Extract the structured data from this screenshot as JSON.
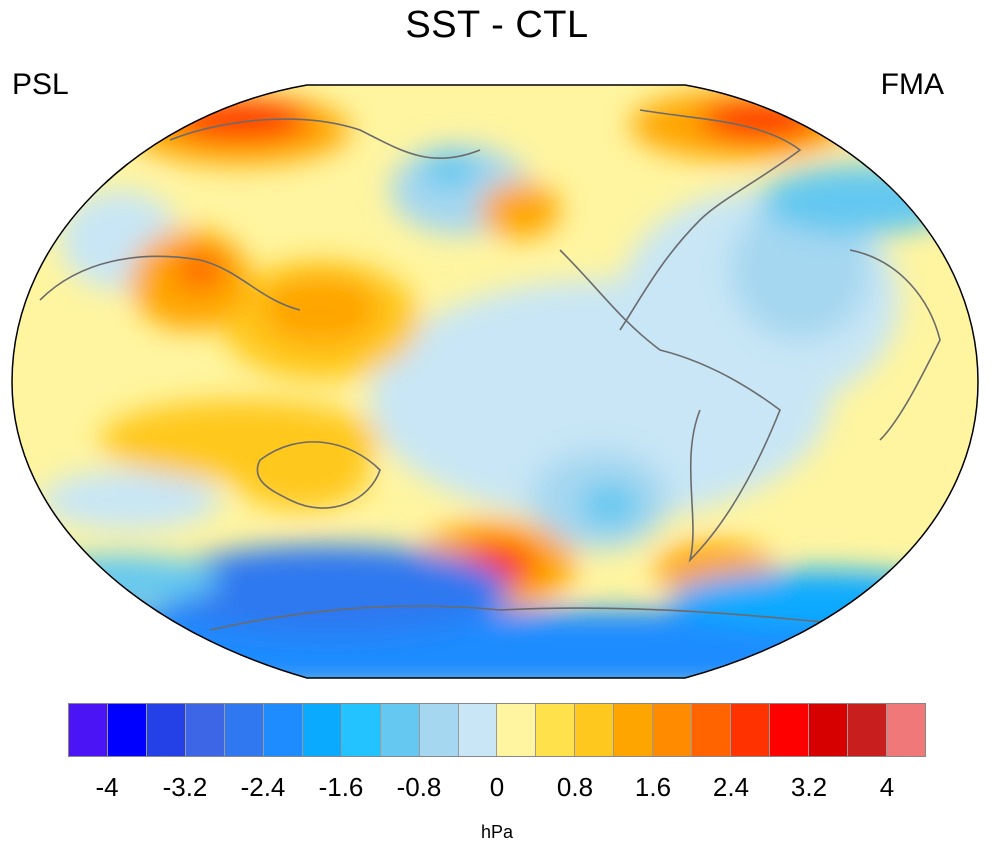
{
  "figure": {
    "title": "SST - CTL",
    "variable_label": "PSL",
    "season_label": "FMA",
    "units_label": "hPa"
  },
  "colorbar": {
    "tick_labels": [
      "-4",
      "-3.2",
      "-2.4",
      "-1.6",
      "-0.8",
      "0",
      "0.8",
      "1.6",
      "2.4",
      "3.2",
      "4"
    ],
    "colors": [
      "#4b14f5",
      "#0000ff",
      "#2341e6",
      "#3c66e6",
      "#2f78f0",
      "#1e8cff",
      "#0aaaff",
      "#23c3ff",
      "#64c8f0",
      "#a5d7f0",
      "#c8e6f5",
      "#fff5a0",
      "#ffe14b",
      "#ffc81e",
      "#ffa500",
      "#ff8c00",
      "#ff6400",
      "#ff3200",
      "#ff0000",
      "#d70000",
      "#c81e1e",
      "#f07878"
    ]
  },
  "chart_data": {
    "type": "heatmap",
    "title": "SST - CTL",
    "variable": "PSL",
    "season": "FMA",
    "units": "hPa",
    "projection": "Robinson, centered on 180°",
    "levels": [
      -4,
      -3.6,
      -3.2,
      -2.8,
      -2.4,
      -2.0,
      -1.6,
      -1.2,
      -0.8,
      -0.4,
      0,
      0.4,
      0.8,
      1.2,
      1.6,
      2.0,
      2.4,
      2.8,
      3.2,
      3.6,
      4
    ],
    "features": [
      {
        "region": "Southern Ocean / Antarctic coast",
        "sign": "negative",
        "approx_hPa": -3.2
      },
      {
        "region": "South Pacific (~50S, 150W)",
        "sign": "positive",
        "approx_hPa": 2.4
      },
      {
        "region": "South Atlantic off Argentina",
        "sign": "positive",
        "approx_hPa": 1.6
      },
      {
        "region": "Eastern Siberia",
        "sign": "positive",
        "approx_hPa": 2.4
      },
      {
        "region": "Greenland / Baffin Bay",
        "sign": "positive",
        "approx_hPa": 2.4
      },
      {
        "region": "Tibetan Plateau",
        "sign": "positive",
        "approx_hPa": 2.4
      },
      {
        "region": "North Atlantic (Labrador Sea)",
        "sign": "negative",
        "approx_hPa": -1.6
      },
      {
        "region": "Western North Pacific / Maritime Continent",
        "sign": "positive",
        "approx_hPa": 1.6
      },
      {
        "region": "Alaska / Gulf of Alaska",
        "sign": "positive",
        "approx_hPa": 1.6
      },
      {
        "region": "Bering Sea / Kamchatka",
        "sign": "negative",
        "approx_hPa": -1.2
      },
      {
        "region": "Australia",
        "sign": "positive",
        "approx_hPa": 1.2
      },
      {
        "region": "Southeast Pacific (~40S, 110W)",
        "sign": "negative",
        "approx_hPa": -1.6
      },
      {
        "region": "Tropical eastern Pacific",
        "sign": "negative",
        "approx_hPa": -0.4
      }
    ]
  }
}
